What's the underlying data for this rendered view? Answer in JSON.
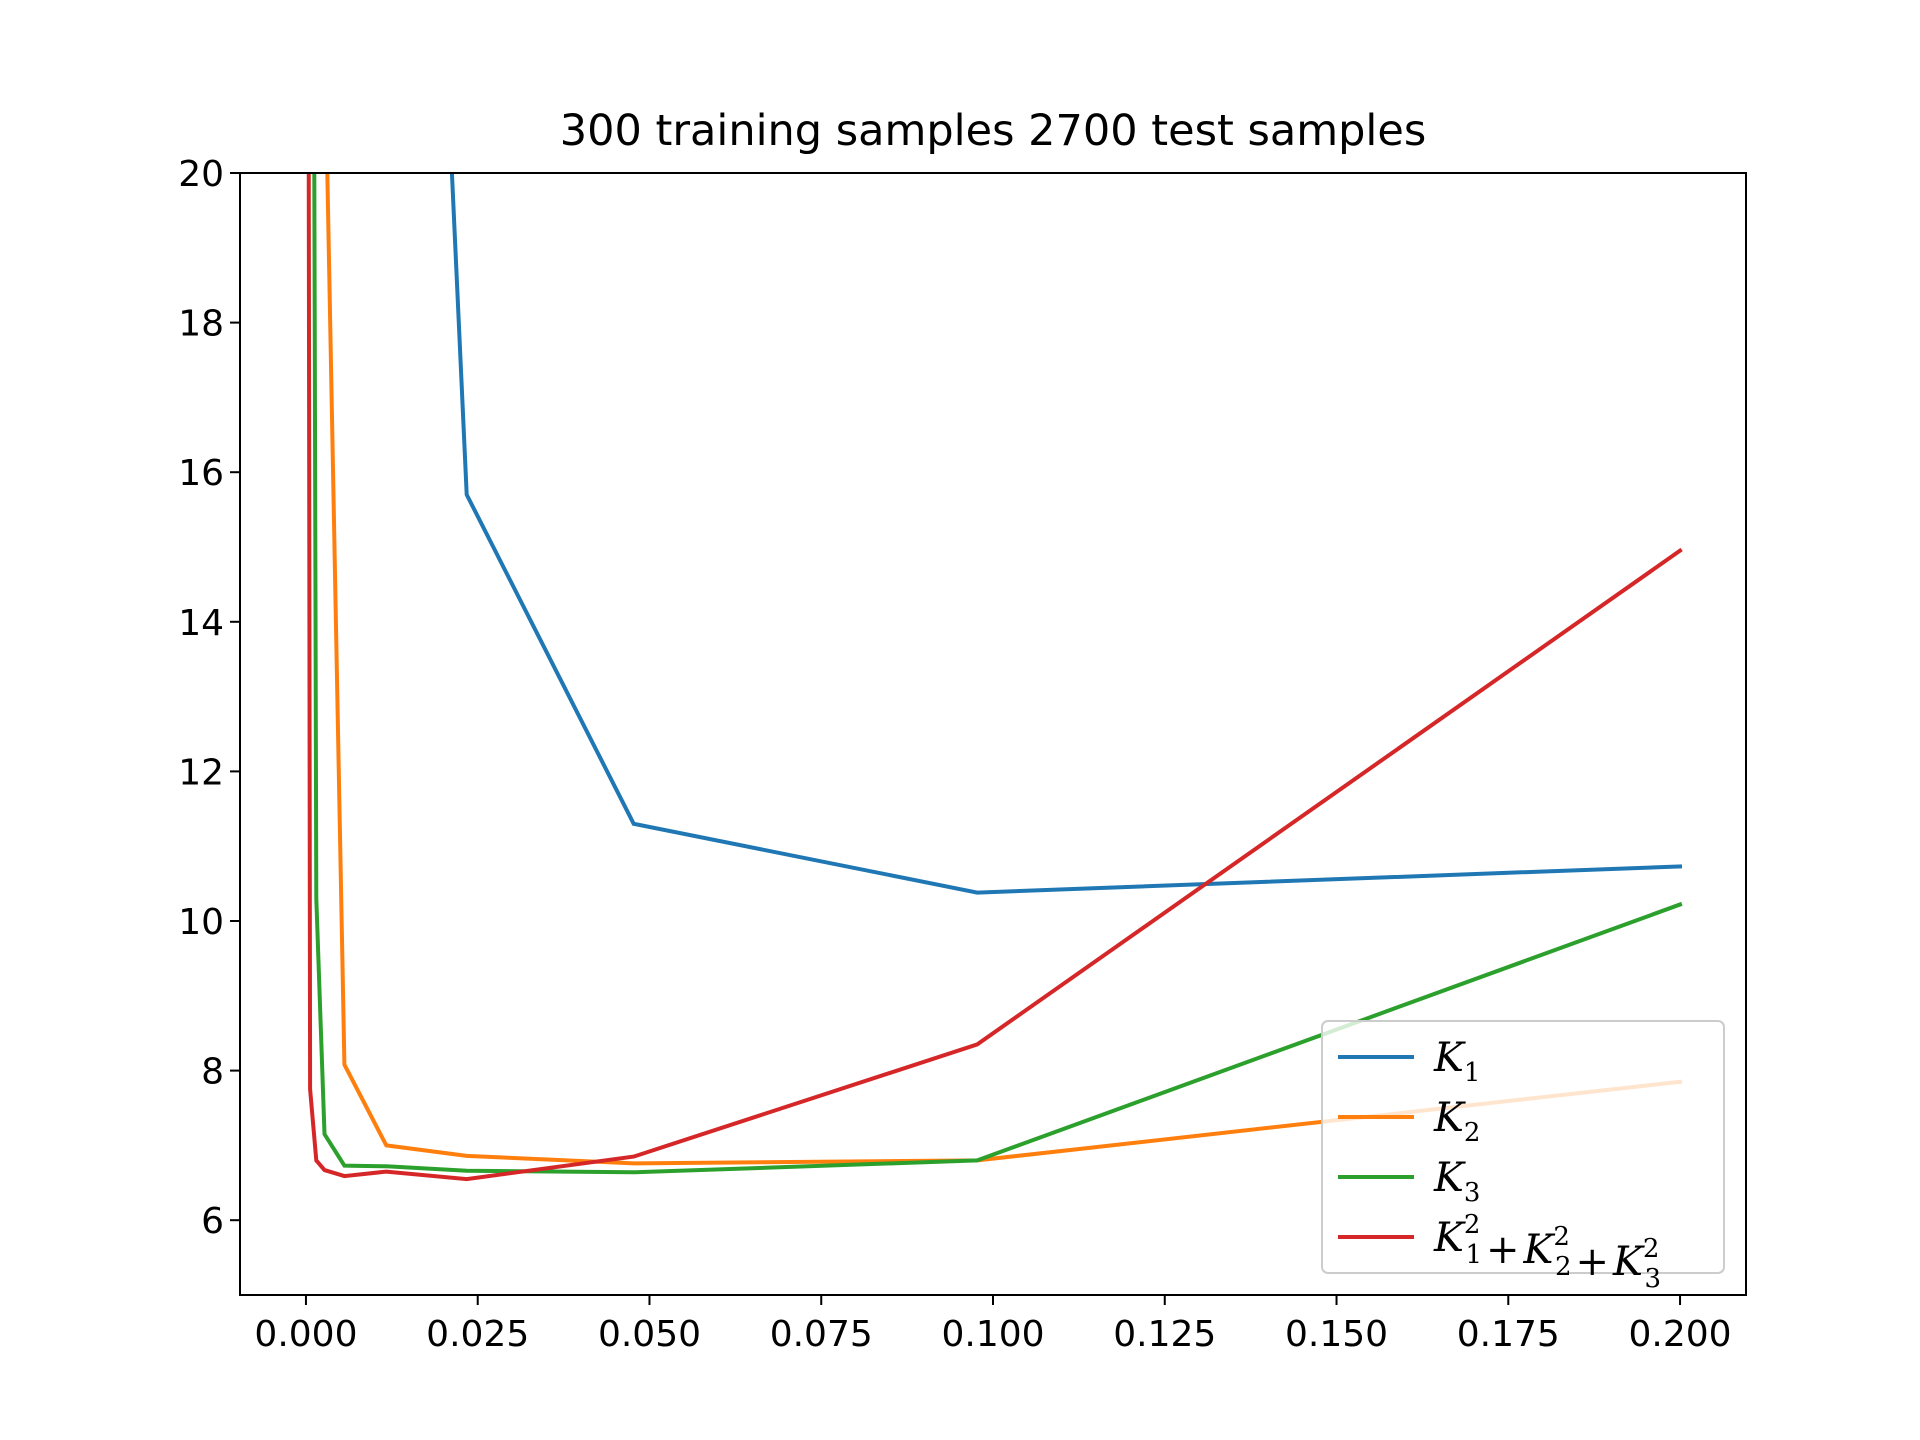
{
  "chart_data": {
    "type": "line",
    "title": "300 training samples 2700 test samples",
    "xlabel": "",
    "ylabel": "",
    "xlim": [
      -0.0096,
      0.2096
    ],
    "ylim": [
      5,
      20
    ],
    "xticks": [
      0.0,
      0.025,
      0.05,
      0.075,
      0.1,
      0.125,
      0.15,
      0.175,
      0.2
    ],
    "xtick_labels": [
      "0.000",
      "0.025",
      "0.050",
      "0.075",
      "0.100",
      "0.125",
      "0.150",
      "0.175",
      "0.200"
    ],
    "yticks": [
      6,
      8,
      10,
      12,
      14,
      16,
      18,
      20
    ],
    "ytick_labels": [
      "6",
      "8",
      "10",
      "12",
      "14",
      "16",
      "18",
      "20"
    ],
    "grid": false,
    "legend_position": "lower-right",
    "series": [
      {
        "name": "K_1",
        "legend": {
          "base": "K",
          "sub": "1"
        },
        "color": "#1f77b4",
        "x": [
          0.021,
          0.0234,
          0.0477,
          0.0977,
          0.2
        ],
        "y": [
          20.5,
          15.7,
          11.3,
          10.38,
          10.73
        ]
      },
      {
        "name": "K_2",
        "legend": {
          "base": "K",
          "sub": "2"
        },
        "color": "#ff7f0e",
        "x": [
          0.003,
          0.0056,
          0.0117,
          0.0234,
          0.0477,
          0.0977,
          0.2
        ],
        "y": [
          20.5,
          8.08,
          7.0,
          6.86,
          6.76,
          6.8,
          7.85
        ]
      },
      {
        "name": "K_3",
        "legend": {
          "base": "K",
          "sub": "3"
        },
        "color": "#2ca02c",
        "x": [
          0.0012,
          0.0015,
          0.0027,
          0.0056,
          0.0117,
          0.0234,
          0.0477,
          0.0977,
          0.2
        ],
        "y": [
          20.5,
          10.3,
          7.15,
          6.73,
          6.72,
          6.66,
          6.64,
          6.8,
          10.22
        ]
      },
      {
        "name": "K_1^2 + K_2^2 + K_3^2",
        "legend": {
          "terms": [
            "1",
            "2",
            "3"
          ],
          "sup": "2",
          "base": "K"
        },
        "color": "#d62728",
        "x": [
          0.0004,
          0.0006,
          0.0015,
          0.0027,
          0.0056,
          0.0117,
          0.0234,
          0.0477,
          0.0977,
          0.2
        ],
        "y": [
          20.5,
          7.75,
          6.8,
          6.67,
          6.59,
          6.65,
          6.55,
          6.85,
          8.35,
          14.95
        ]
      }
    ]
  }
}
